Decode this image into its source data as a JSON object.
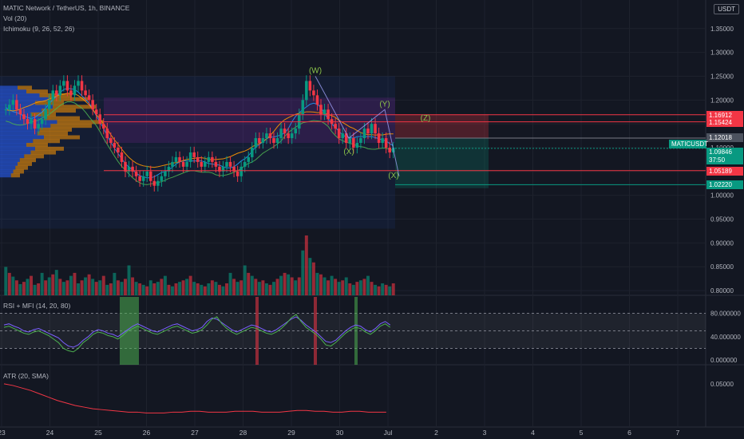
{
  "header": {
    "title": "MATIC Network / TetherUS, 1h, BINANCE",
    "indicators": [
      "Vol (20)",
      "Ichimoku (9, 26, 52, 26)"
    ],
    "currency": "USDT"
  },
  "panels": {
    "rsi_label": "RSI + MFI (14, 20, 80)",
    "atr_label": "ATR (20, SMA)"
  },
  "price_tags": [
    {
      "text": "1.16912",
      "color": "#f23645"
    },
    {
      "text": "1.15424",
      "color": "#f23645"
    },
    {
      "text": "1.12018",
      "color": "#4c525e"
    },
    {
      "text": "MATICUSDT",
      "color": "#089981"
    },
    {
      "text": "1.09846",
      "color": "#089981"
    },
    {
      "text": "37:50",
      "color": "#089981"
    },
    {
      "text": "1.05189",
      "color": "#f23645"
    },
    {
      "text": "1.02220",
      "color": "#089981"
    }
  ],
  "chart_data": {
    "type": "candlestick",
    "symbol": "MATICUSDT",
    "x_ticks": [
      "23",
      "24",
      "25",
      "26",
      "27",
      "28",
      "29",
      "30",
      "Jul",
      "2",
      "3",
      "4",
      "5",
      "6",
      "7"
    ],
    "price_axis": {
      "ticks": [
        "1.35000",
        "1.30000",
        "1.25000",
        "1.20000",
        "1.15000",
        "1.10000",
        "1.05000",
        "1.00000",
        "0.95000",
        "0.90000",
        "0.85000",
        "0.80000"
      ],
      "range": [
        0.79,
        1.41
      ]
    },
    "rsi_axis": {
      "ticks": [
        "80.000000",
        "40.000000",
        "0.000000"
      ],
      "range": [
        -8,
        108
      ]
    },
    "atr_axis": {
      "ticks": [
        "0.05000"
      ]
    },
    "price_close": [
      1.18,
      1.19,
      1.2,
      1.18,
      1.17,
      1.16,
      1.15,
      1.16,
      1.14,
      1.15,
      1.16,
      1.18,
      1.2,
      1.22,
      1.21,
      1.23,
      1.24,
      1.22,
      1.21,
      1.23,
      1.24,
      1.22,
      1.21,
      1.2,
      1.18,
      1.17,
      1.15,
      1.14,
      1.12,
      1.11,
      1.1,
      1.09,
      1.07,
      1.05,
      1.06,
      1.05,
      1.04,
      1.03,
      1.04,
      1.05,
      1.03,
      1.02,
      1.03,
      1.04,
      1.05,
      1.06,
      1.07,
      1.08,
      1.07,
      1.06,
      1.07,
      1.09,
      1.08,
      1.07,
      1.06,
      1.07,
      1.08,
      1.07,
      1.06,
      1.05,
      1.06,
      1.07,
      1.06,
      1.05,
      1.04,
      1.06,
      1.07,
      1.08,
      1.1,
      1.12,
      1.11,
      1.12,
      1.13,
      1.12,
      1.11,
      1.12,
      1.14,
      1.13,
      1.12,
      1.13,
      1.14,
      1.17,
      1.2,
      1.24,
      1.22,
      1.21,
      1.19,
      1.17,
      1.18,
      1.16,
      1.15,
      1.14,
      1.12,
      1.13,
      1.11,
      1.12,
      1.1,
      1.11,
      1.12,
      1.14,
      1.13,
      1.15,
      1.13,
      1.11,
      1.12,
      1.1,
      1.09,
      1.1
    ],
    "waves": [
      {
        "label": "(W)",
        "price": 1.25
      },
      {
        "label": "(X)",
        "price": 1.08
      },
      {
        "label": "(Y)",
        "price": 1.18
      },
      {
        "label": "(Z)",
        "price": 1.15
      },
      {
        "label": "(X)",
        "price": 1.03
      }
    ],
    "levels": [
      1.16912,
      1.15424,
      1.12018,
      1.09846,
      1.05189,
      1.0222
    ],
    "volume": [
      38,
      30,
      25,
      20,
      15,
      18,
      22,
      26,
      14,
      16,
      30,
      20,
      24,
      28,
      34,
      22,
      18,
      20,
      26,
      30,
      16,
      20,
      24,
      28,
      22,
      18,
      20,
      26,
      14,
      16,
      30,
      20,
      18,
      22,
      40,
      24,
      18,
      16,
      14,
      12,
      20,
      16,
      18,
      22,
      26,
      14,
      12,
      16,
      18,
      20,
      22,
      26,
      18,
      16,
      14,
      12,
      16,
      20,
      18,
      14,
      12,
      16,
      30,
      22,
      18,
      20,
      40,
      30,
      26,
      22,
      18,
      20,
      16,
      14,
      18,
      22,
      26,
      30,
      28,
      24,
      20,
      24,
      60,
      80,
      50,
      44,
      30,
      28,
      24,
      20,
      26,
      22,
      18,
      20,
      24,
      16,
      14,
      18,
      20,
      22,
      26,
      18,
      14,
      12,
      16,
      14,
      12,
      16
    ],
    "rsi": [
      60,
      62,
      58,
      55,
      50,
      48,
      52,
      54,
      50,
      46,
      42,
      38,
      30,
      24,
      22,
      26,
      34,
      40,
      48,
      52,
      50,
      46,
      44,
      40,
      46,
      52,
      58,
      62,
      58,
      54,
      50,
      48,
      52,
      56,
      60,
      62,
      58,
      54,
      50,
      52,
      56,
      66,
      72,
      70,
      64,
      58,
      52,
      48,
      52,
      56,
      60,
      58,
      54,
      50,
      48,
      52,
      58,
      64,
      70,
      74,
      68,
      60,
      54,
      48,
      40,
      32,
      30,
      34,
      42,
      50,
      56,
      60,
      58,
      52,
      48,
      54,
      62,
      66,
      60
    ],
    "mfi": [
      56,
      58,
      54,
      50,
      46,
      44,
      48,
      50,
      46,
      42,
      36,
      30,
      20,
      16,
      14,
      20,
      30,
      36,
      44,
      48,
      46,
      42,
      40,
      36,
      42,
      50,
      54,
      58,
      54,
      50,
      46,
      44,
      48,
      52,
      56,
      58,
      54,
      50,
      46,
      48,
      52,
      60,
      70,
      74,
      62,
      54,
      48,
      44,
      48,
      52,
      56,
      54,
      50,
      46,
      44,
      48,
      54,
      62,
      72,
      78,
      66,
      56,
      50,
      44,
      36,
      26,
      24,
      30,
      38,
      46,
      52,
      56,
      54,
      48,
      44,
      50,
      58,
      62,
      56
    ],
    "atr": [
      0.05,
      0.048,
      0.045,
      0.042,
      0.038,
      0.034,
      0.03,
      0.027,
      0.024,
      0.022,
      0.02,
      0.019,
      0.018,
      0.017,
      0.016,
      0.016,
      0.015,
      0.015,
      0.015,
      0.016,
      0.016,
      0.017,
      0.017,
      0.016,
      0.016,
      0.016,
      0.017,
      0.017,
      0.017,
      0.016,
      0.016,
      0.016,
      0.017,
      0.018,
      0.018,
      0.017,
      0.017,
      0.016,
      0.016,
      0.017,
      0.017,
      0.016,
      0.016,
      0.016
    ]
  }
}
